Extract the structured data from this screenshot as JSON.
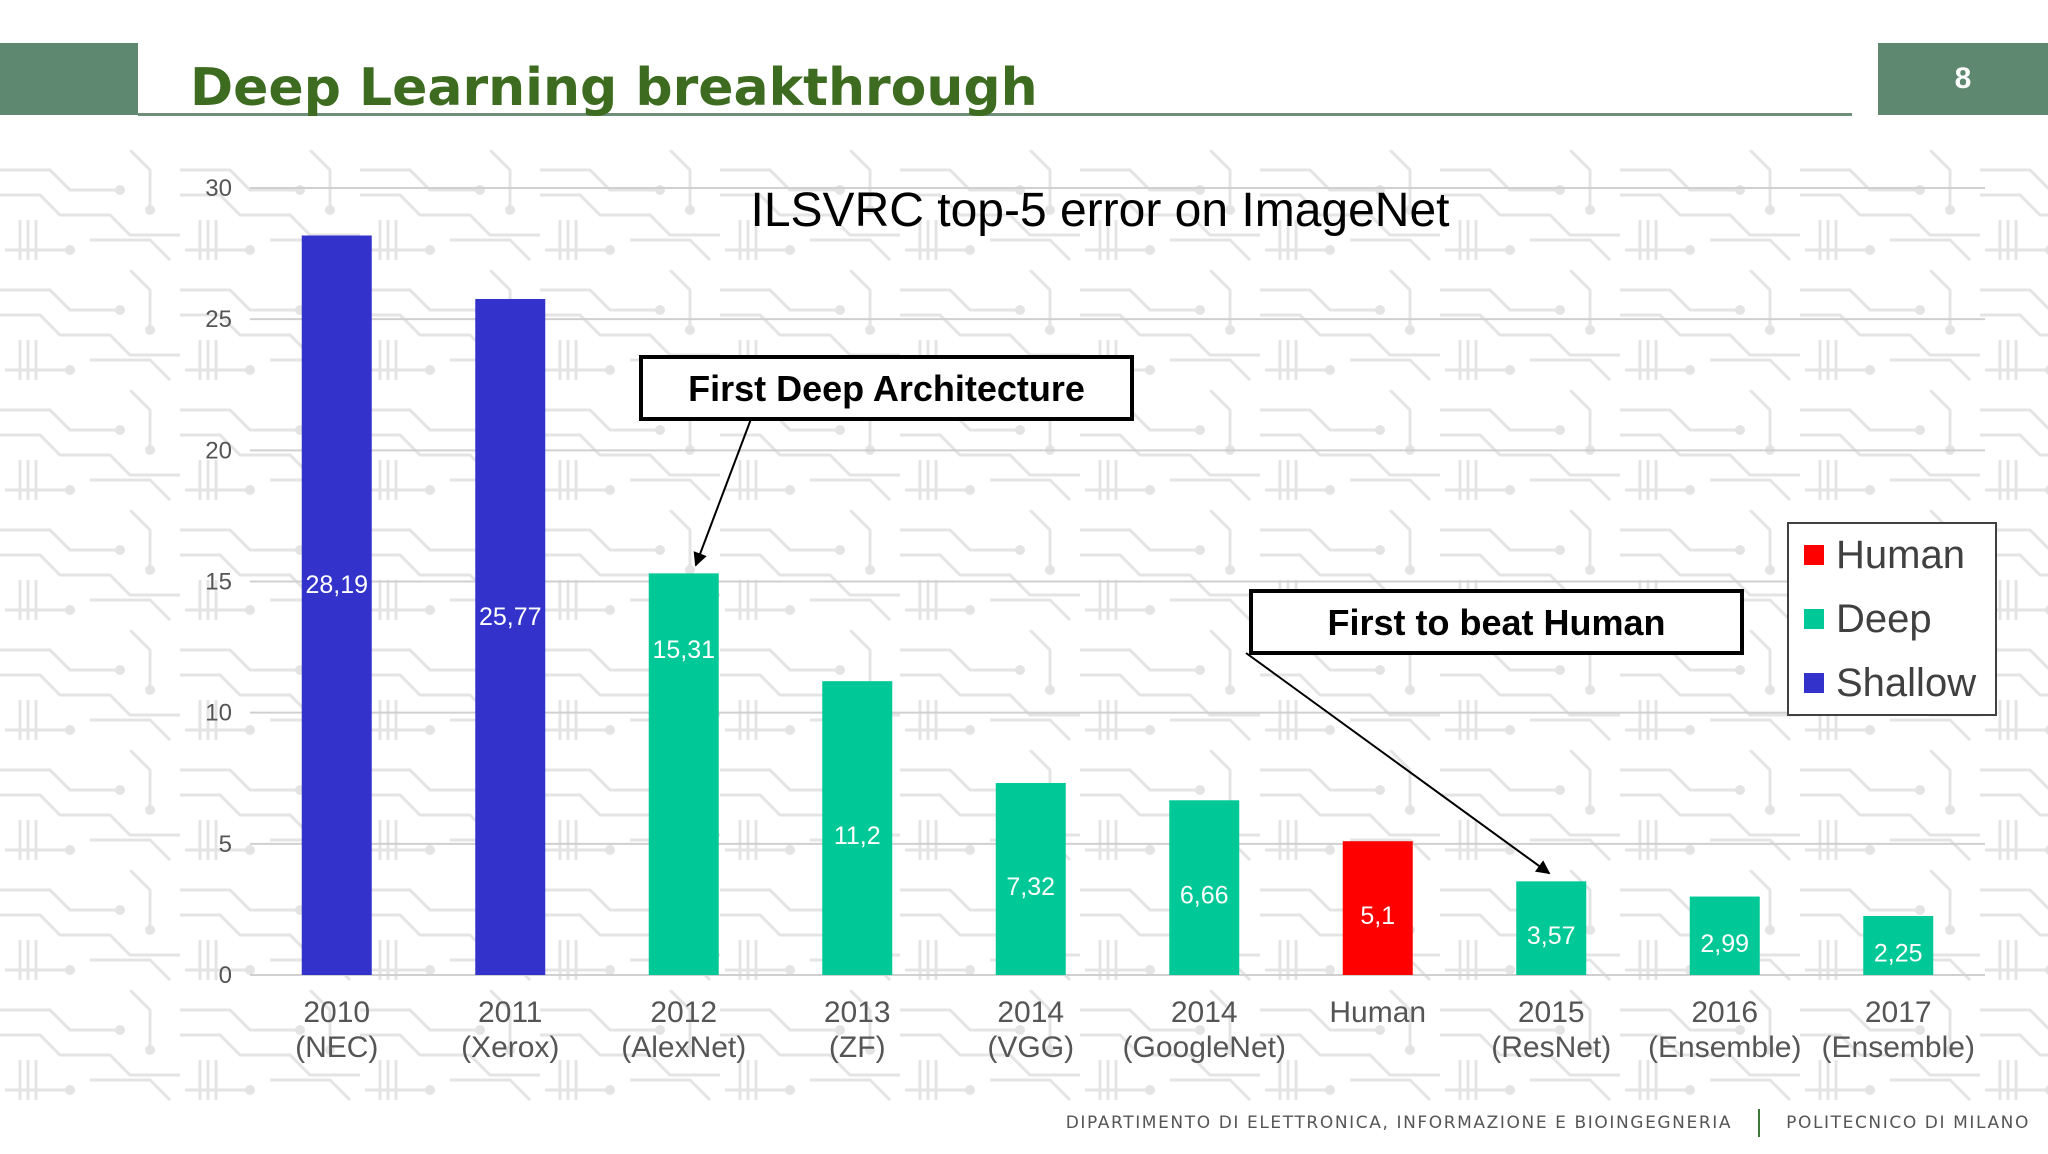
{
  "slide": {
    "title": "Deep Learning breakthrough",
    "page_number": "8",
    "footer_left": "DIPARTIMENTO DI ELETTRONICA, INFORMAZIONE E BIOINGEGNERIA",
    "footer_right": "POLITECNICO DI MILANO"
  },
  "colors": {
    "shallow": "#3333cc",
    "deep": "#00c896",
    "human": "#ff0000",
    "title": "#3d6b1f",
    "bar_band": "#5e8870"
  },
  "chart_data": {
    "type": "bar",
    "title": "ILSVRC top-5 error on ImageNet",
    "xlabel": "",
    "ylabel": "",
    "ylim": [
      0,
      30
    ],
    "yticks": [
      0,
      5,
      10,
      15,
      20,
      25,
      30
    ],
    "grid": true,
    "legend_position": "right",
    "categories": [
      [
        "2010",
        "(NEC)"
      ],
      [
        "2011",
        "(Xerox)"
      ],
      [
        "2012",
        "(AlexNet)"
      ],
      [
        "2013",
        "(ZF)"
      ],
      [
        "2014",
        "(VGG)"
      ],
      [
        "2014",
        "(GoogleNet)"
      ],
      [
        "Human",
        ""
      ],
      [
        "2015",
        "(ResNet)"
      ],
      [
        "2016",
        "(Ensemble)"
      ],
      [
        "2017",
        "(Ensemble)"
      ]
    ],
    "values": [
      28.19,
      25.77,
      15.31,
      11.2,
      7.32,
      6.66,
      5.1,
      3.57,
      2.99,
      2.25
    ],
    "value_labels": [
      "28,19",
      "25,77",
      "15,31",
      "11,2",
      "7,32",
      "6,66",
      "5,1",
      "3,57",
      "2,99",
      "2,25"
    ],
    "bar_groups": [
      "Shallow",
      "Shallow",
      "Deep",
      "Deep",
      "Deep",
      "Deep",
      "Human",
      "Deep",
      "Deep",
      "Deep"
    ],
    "legend": [
      {
        "name": "Human",
        "color": "#ff0000"
      },
      {
        "name": "Deep",
        "color": "#00c896"
      },
      {
        "name": "Shallow",
        "color": "#3333cc"
      }
    ],
    "annotations": [
      {
        "text": "First Deep Architecture",
        "target_index": 2
      },
      {
        "text": "First to beat Human",
        "target_index": 7
      }
    ]
  }
}
